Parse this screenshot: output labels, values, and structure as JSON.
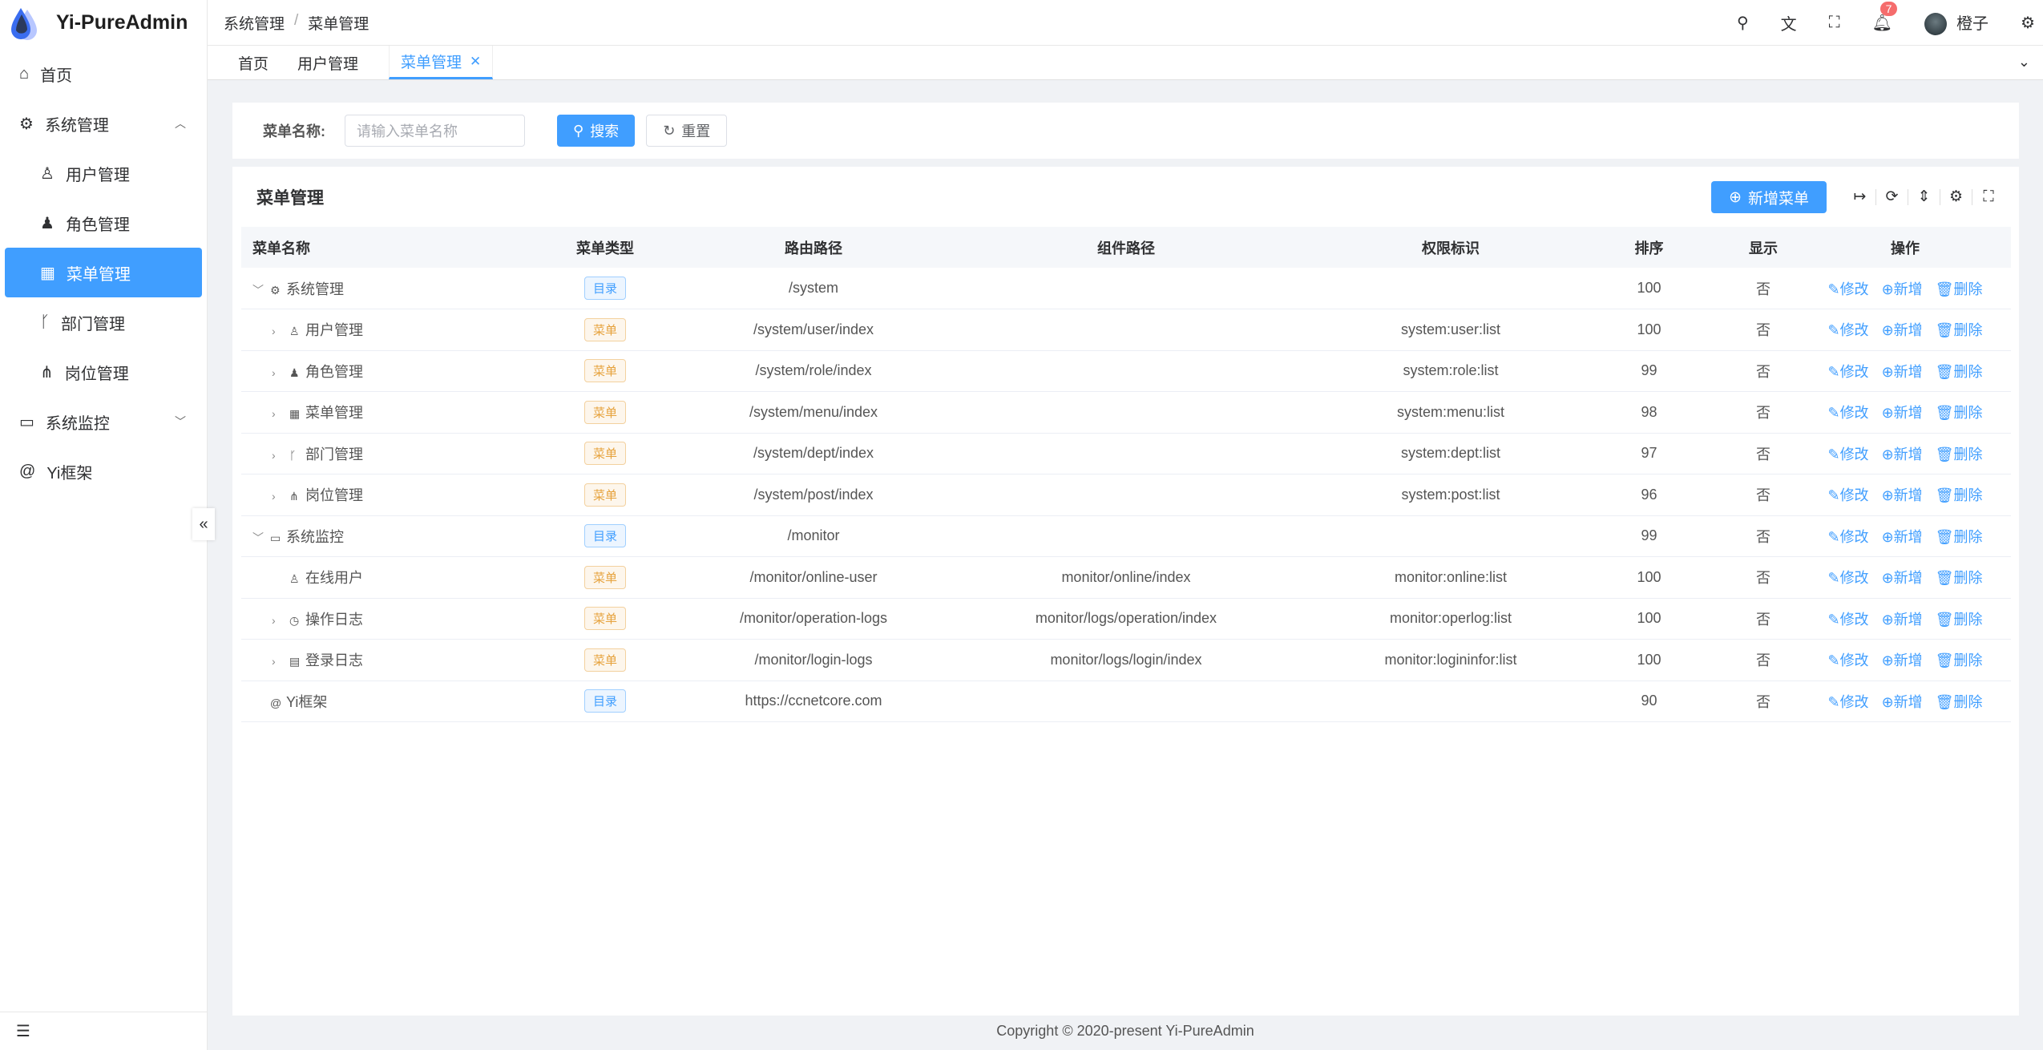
{
  "app": {
    "title": "Yi-PureAdmin"
  },
  "sidebar": {
    "items": [
      {
        "label": "首页",
        "icon": "home-icon"
      },
      {
        "label": "系统管理",
        "icon": "gear-icon",
        "expanded": true
      },
      {
        "label": "用户管理",
        "icon": "user-lock-icon"
      },
      {
        "label": "角色管理",
        "icon": "user-role-icon"
      },
      {
        "label": "菜单管理",
        "icon": "grid-icon",
        "active": true
      },
      {
        "label": "部门管理",
        "icon": "branch-icon"
      },
      {
        "label": "岗位管理",
        "icon": "org-icon"
      },
      {
        "label": "系统监控",
        "icon": "monitor-icon",
        "expanded": false
      },
      {
        "label": "Yi框架",
        "icon": "at-icon"
      }
    ]
  },
  "header": {
    "breadcrumb": [
      "系统管理",
      "菜单管理"
    ],
    "notifications": "7",
    "username": "橙子"
  },
  "tabs": [
    {
      "label": "首页"
    },
    {
      "label": "用户管理"
    },
    {
      "label": "菜单管理",
      "active": true
    }
  ],
  "search": {
    "label": "菜单名称:",
    "placeholder": "请输入菜单名称",
    "search_label": "搜索",
    "reset_label": "重置"
  },
  "table": {
    "title": "菜单管理",
    "add_label": "新增菜单",
    "columns": [
      "菜单名称",
      "菜单类型",
      "路由路径",
      "组件路径",
      "权限标识",
      "排序",
      "显示",
      "操作"
    ],
    "actions": {
      "edit": "修改",
      "add": "新增",
      "delete": "删除"
    },
    "rows": [
      {
        "name": "系统管理",
        "level": 0,
        "caret": "open",
        "icon": "⚙",
        "type": "目录",
        "kind": "dir",
        "route": "/system",
        "component": "",
        "perm": "",
        "sort": "100",
        "show": "否"
      },
      {
        "name": "用户管理",
        "level": 1,
        "caret": "closed",
        "icon": "♙",
        "type": "菜单",
        "kind": "menu",
        "route": "/system/user/index",
        "component": "",
        "perm": "system:user:list",
        "sort": "100",
        "show": "否"
      },
      {
        "name": "角色管理",
        "level": 1,
        "caret": "closed",
        "icon": "♟",
        "type": "菜单",
        "kind": "menu",
        "route": "/system/role/index",
        "component": "",
        "perm": "system:role:list",
        "sort": "99",
        "show": "否"
      },
      {
        "name": "菜单管理",
        "level": 1,
        "caret": "closed",
        "icon": "▦",
        "type": "菜单",
        "kind": "menu",
        "route": "/system/menu/index",
        "component": "",
        "perm": "system:menu:list",
        "sort": "98",
        "show": "否"
      },
      {
        "name": "部门管理",
        "level": 1,
        "caret": "closed",
        "icon": "ᚴ",
        "type": "菜单",
        "kind": "menu",
        "route": "/system/dept/index",
        "component": "",
        "perm": "system:dept:list",
        "sort": "97",
        "show": "否"
      },
      {
        "name": "岗位管理",
        "level": 1,
        "caret": "closed",
        "icon": "⋔",
        "type": "菜单",
        "kind": "menu",
        "route": "/system/post/index",
        "component": "",
        "perm": "system:post:list",
        "sort": "96",
        "show": "否"
      },
      {
        "name": "系统监控",
        "level": 0,
        "caret": "open",
        "icon": "▭",
        "type": "目录",
        "kind": "dir",
        "route": "/monitor",
        "component": "",
        "perm": "",
        "sort": "99",
        "show": "否"
      },
      {
        "name": "在线用户",
        "level": 1,
        "caret": "",
        "icon": "♙",
        "type": "菜单",
        "kind": "menu",
        "route": "/monitor/online-user",
        "component": "monitor/online/index",
        "perm": "monitor:online:list",
        "sort": "100",
        "show": "否"
      },
      {
        "name": "操作日志",
        "level": 1,
        "caret": "closed",
        "icon": "◷",
        "type": "菜单",
        "kind": "menu",
        "route": "/monitor/operation-logs",
        "component": "monitor/logs/operation/index",
        "perm": "monitor:operlog:list",
        "sort": "100",
        "show": "否"
      },
      {
        "name": "登录日志",
        "level": 1,
        "caret": "closed",
        "icon": "▤",
        "type": "菜单",
        "kind": "menu",
        "route": "/monitor/login-logs",
        "component": "monitor/logs/login/index",
        "perm": "monitor:logininfor:list",
        "sort": "100",
        "show": "否"
      },
      {
        "name": "Yi框架",
        "level": 0,
        "caret": "",
        "icon": "@",
        "type": "目录",
        "kind": "dir",
        "route": "https://ccnetcore.com",
        "component": "",
        "perm": "",
        "sort": "90",
        "show": "否"
      }
    ]
  },
  "footer": "Copyright © 2020-present Yi-PureAdmin",
  "colors": {
    "primary": "#409eff",
    "dir_tag": "#409eff",
    "menu_tag": "#e6a23c",
    "badge": "#f56c6c"
  }
}
